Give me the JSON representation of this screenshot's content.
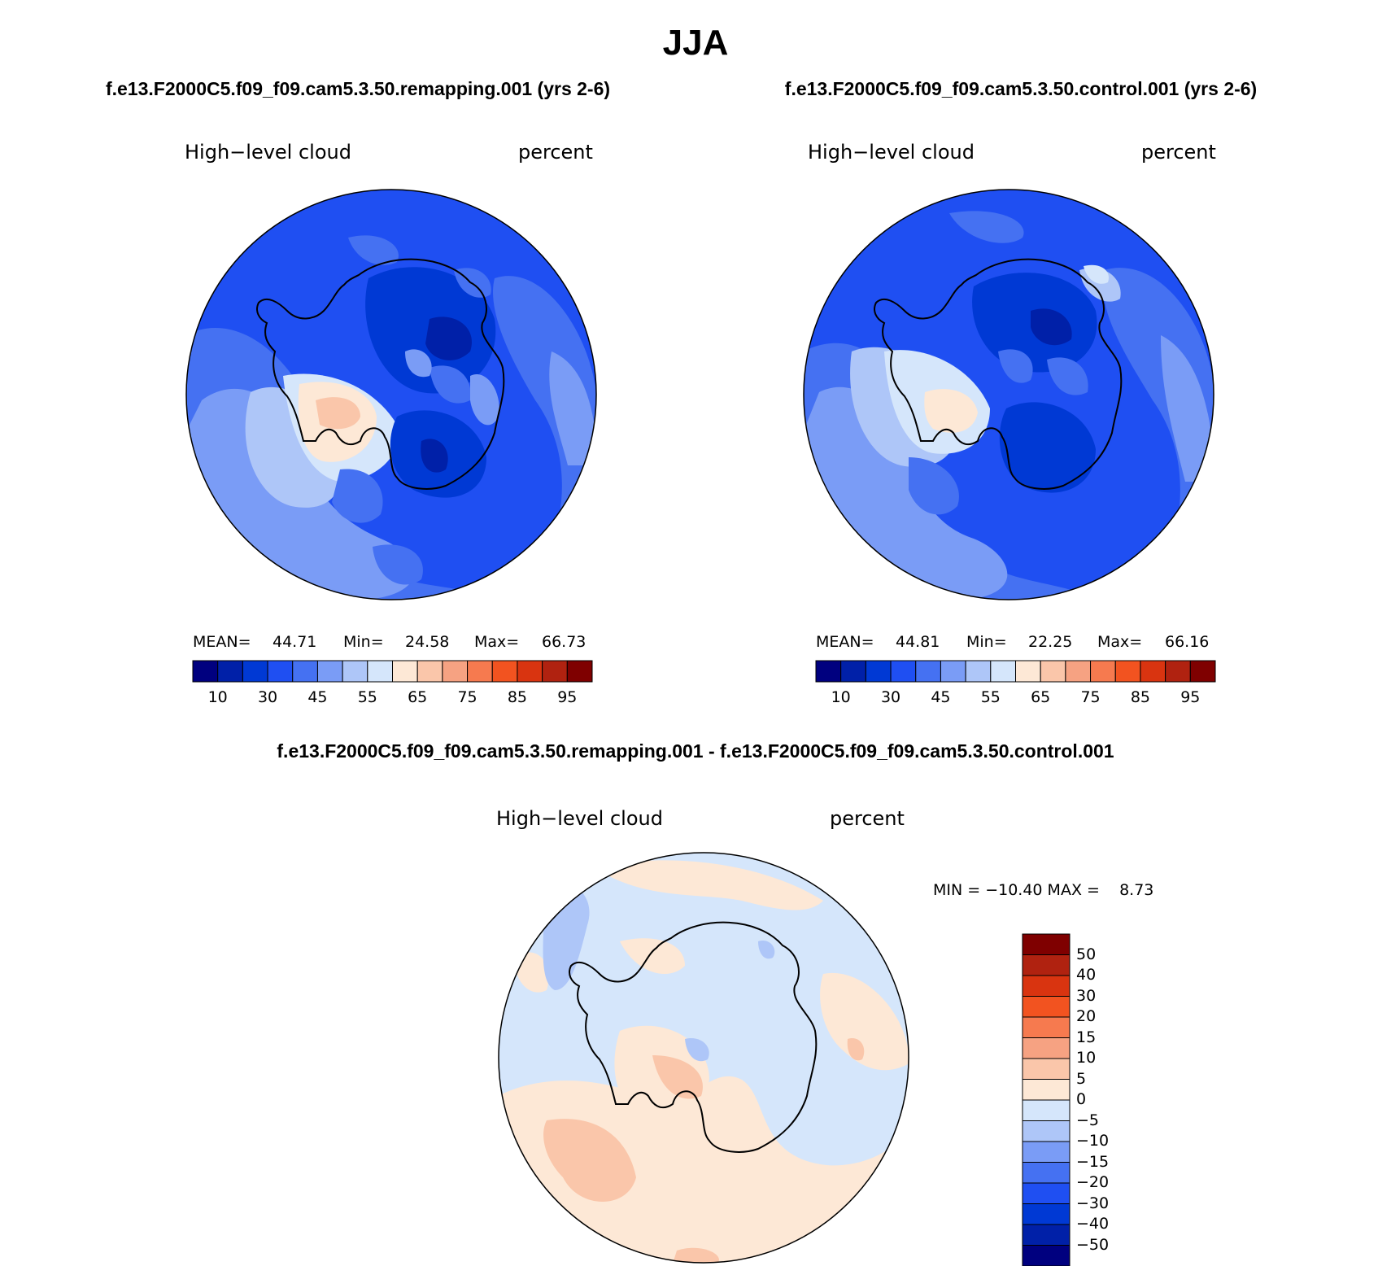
{
  "title": "JJA",
  "panels": [
    {
      "case_title": "f.e13.F2000C5.f09_f09.cam5.3.50.remapping.001 (yrs 2-6)",
      "field_label": "High−level cloud",
      "units_label": "percent",
      "mean_label": "MEAN=",
      "mean_value": "44.71",
      "min_label": "Min=",
      "min_value": "24.58",
      "max_label": "Max=",
      "max_value": "66.73"
    },
    {
      "case_title": "f.e13.F2000C5.f09_f09.cam5.3.50.control.001 (yrs 2-6)",
      "field_label": "High−level cloud",
      "units_label": "percent",
      "mean_label": "MEAN=",
      "mean_value": "44.81",
      "min_label": "Min=",
      "min_value": "22.25",
      "max_label": "Max=",
      "max_value": "66.16"
    }
  ],
  "diff": {
    "title": "f.e13.F2000C5.f09_f09.cam5.3.50.remapping.001 - f.e13.F2000C5.f09_f09.cam5.3.50.control.001",
    "field_label": "High−level cloud",
    "units_label": "percent",
    "minmax_label": "MIN = −10.40 MAX =    8.73"
  },
  "chart_data": [
    {
      "type": "heatmap",
      "projection": "south polar stereographic",
      "colorbar": {
        "orientation": "horizontal",
        "colors": [
          "#00007f",
          "#0020a8",
          "#0039d4",
          "#1f4ff2",
          "#4571f2",
          "#7a9cf6",
          "#aec6f8",
          "#d5e6fb",
          "#fde8d6",
          "#fac6aa",
          "#f6a282",
          "#f67a4f",
          "#f25320",
          "#d93410",
          "#b02210",
          "#7f0000"
        ],
        "tick_labels": [
          "10",
          "30",
          "45",
          "55",
          "65",
          "75",
          "85",
          "95"
        ]
      },
      "stats": {
        "mean": 44.71,
        "min": 24.58,
        "max": 66.73
      }
    },
    {
      "type": "heatmap",
      "projection": "south polar stereographic",
      "colorbar": {
        "orientation": "horizontal",
        "colors": [
          "#00007f",
          "#0020a8",
          "#0039d4",
          "#1f4ff2",
          "#4571f2",
          "#7a9cf6",
          "#aec6f8",
          "#d5e6fb",
          "#fde8d6",
          "#fac6aa",
          "#f6a282",
          "#f67a4f",
          "#f25320",
          "#d93410",
          "#b02210",
          "#7f0000"
        ],
        "tick_labels": [
          "10",
          "30",
          "45",
          "55",
          "65",
          "75",
          "85",
          "95"
        ]
      },
      "stats": {
        "mean": 44.81,
        "min": 22.25,
        "max": 66.16
      }
    },
    {
      "type": "heatmap",
      "projection": "south polar stereographic",
      "colorbar": {
        "orientation": "vertical",
        "colors_top_to_bottom": [
          "#7f0000",
          "#b02210",
          "#d93410",
          "#f25320",
          "#f67a4f",
          "#f6a282",
          "#fac6aa",
          "#fde8d6",
          "#d5e6fb",
          "#aec6f8",
          "#7a9cf6",
          "#4571f2",
          "#1f4ff2",
          "#0039d4",
          "#0020a8",
          "#00007f"
        ],
        "tick_labels_top_to_bottom": [
          "50",
          "40",
          "30",
          "20",
          "15",
          "10",
          "5",
          "0",
          "−5",
          "−10",
          "−15",
          "−20",
          "−30",
          "−40",
          "−50"
        ]
      },
      "stats": {
        "min": -10.4,
        "max": 8.73
      }
    }
  ]
}
